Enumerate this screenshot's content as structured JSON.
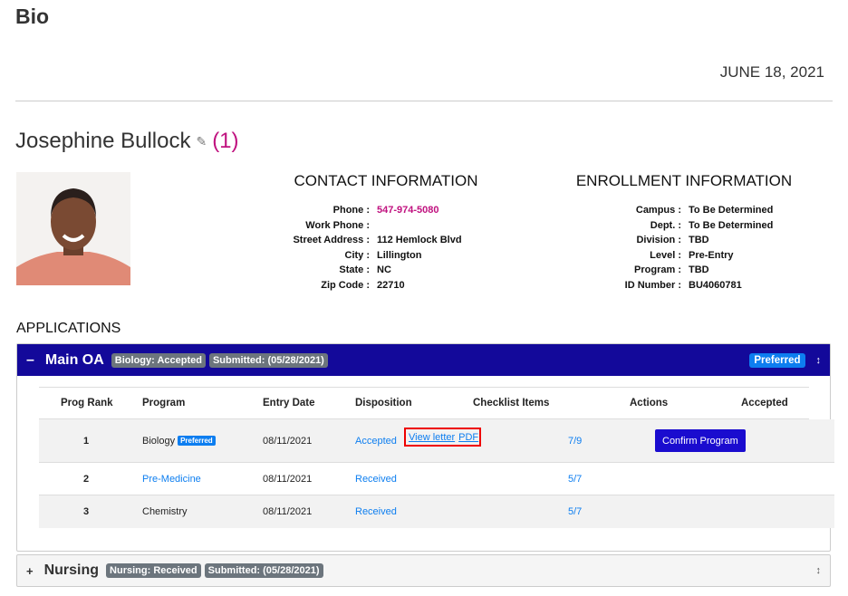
{
  "page": {
    "title": "Bio",
    "date": "JUNE 18, 2021"
  },
  "profile": {
    "name": "Josephine Bullock",
    "count": "(1)",
    "edit_icon": "paperclip-icon"
  },
  "contact": {
    "heading": "CONTACT INFORMATION",
    "rows": [
      {
        "label": "Phone :",
        "value": "547-974-5080"
      },
      {
        "label": "Work Phone :",
        "value": ""
      },
      {
        "label": "Street Address :",
        "value": "112 Hemlock Blvd"
      },
      {
        "label": "City :",
        "value": "Lillington"
      },
      {
        "label": "State :",
        "value": "NC"
      },
      {
        "label": "Zip Code :",
        "value": "22710"
      }
    ]
  },
  "enrollment": {
    "heading": "ENROLLMENT INFORMATION",
    "rows": [
      {
        "label": "Campus :",
        "value": "To Be Determined"
      },
      {
        "label": "Dept. :",
        "value": "To Be Determined"
      },
      {
        "label": "Division :",
        "value": "TBD"
      },
      {
        "label": "Level :",
        "value": "Pre-Entry"
      },
      {
        "label": "Program :",
        "value": "TBD"
      },
      {
        "label": "ID Number :",
        "value": "BU4060781"
      }
    ]
  },
  "applications": {
    "heading": "APPLICATIONS",
    "main": {
      "toggle": "–",
      "title": "Main OA",
      "badges": [
        "Biology: Accepted",
        "Submitted: (05/28/2021)"
      ],
      "preferred": "Preferred",
      "sort_icon": "↕",
      "columns": [
        "Prog Rank",
        "Program",
        "Entry Date",
        "Disposition",
        "Checklist Items",
        "Actions",
        "Accepted"
      ],
      "rows": [
        {
          "rank": "1",
          "program": "Biology",
          "tag": "Preferred",
          "date": "08/11/2021",
          "disposition": "Accepted",
          "view_letter": "View letter",
          "pdf": "PDF",
          "checklist": "7/9",
          "action": "Confirm Program"
        },
        {
          "rank": "2",
          "program": "Pre-Medicine",
          "date": "08/11/2021",
          "disposition": "Received",
          "checklist": "5/7"
        },
        {
          "rank": "3",
          "program": "Chemistry",
          "date": "08/11/2021",
          "disposition": "Received",
          "checklist": "5/7"
        }
      ]
    },
    "nursing": {
      "toggle": "+",
      "title": "Nursing",
      "badges": [
        "Nursing: Received",
        "Submitted: (05/28/2021)"
      ],
      "sort_icon": "↕"
    }
  },
  "colors": {
    "header": "#13099a",
    "accent": "#0d7ef0",
    "pink": "#c0127f"
  }
}
